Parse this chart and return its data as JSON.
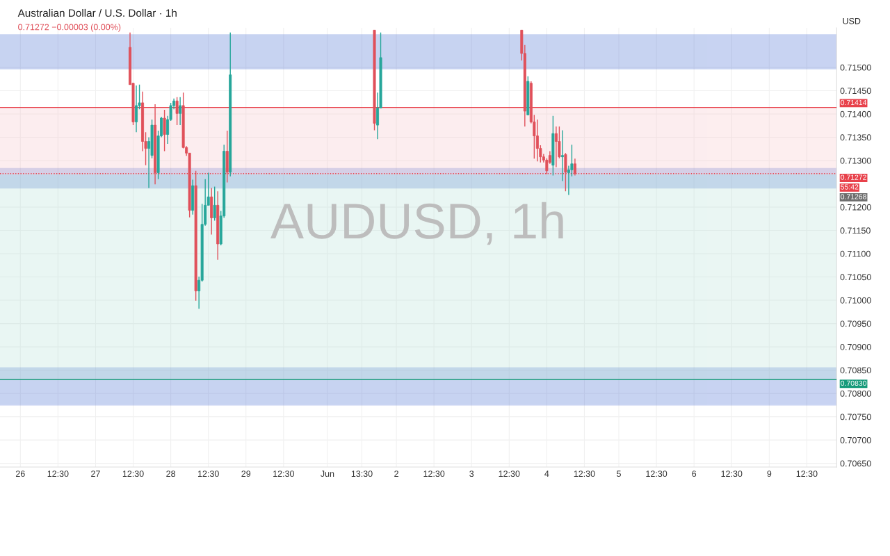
{
  "chart_data": {
    "type": "candlestick",
    "title": "Australian Dollar / U.S. Dollar · 1h",
    "subtitle": "0.71272 −0.00003 (0.00%)",
    "ylabel": "USD",
    "annotations": [
      "AUDUSD, 1h",
      "55:42",
      "0.71268"
    ],
    "categories": [
      null,
      null,
      null,
      null,
      null,
      null,
      "26",
      null,
      null,
      null,
      null,
      null,
      null,
      null,
      null,
      null,
      null,
      null,
      "12:30",
      null,
      null,
      null,
      null,
      null,
      null,
      null,
      null,
      null,
      null,
      null,
      "27",
      null,
      null,
      null,
      null,
      null,
      null,
      null,
      null,
      null,
      null,
      null,
      "12:30",
      null,
      null,
      null,
      null,
      null,
      null,
      null,
      null,
      null,
      null,
      null,
      "28",
      null,
      null,
      null,
      null,
      null,
      null,
      null,
      null,
      null,
      null,
      null,
      "12:30",
      null,
      null,
      null,
      null,
      null,
      null,
      null,
      null,
      null,
      null,
      null,
      "29",
      null,
      null,
      null,
      null,
      null,
      null,
      null,
      null,
      null,
      null,
      null,
      "12:30",
      null,
      null,
      null,
      null,
      null,
      null,
      null,
      null,
      null,
      null,
      null,
      null,
      null,
      "Jun",
      null,
      null,
      null,
      null,
      null,
      null,
      null,
      null,
      null,
      null,
      "13:30",
      null,
      null,
      null,
      null,
      null,
      null,
      null,
      null,
      null,
      null,
      "2",
      null,
      null,
      null,
      null,
      null,
      null,
      null,
      null,
      null,
      null,
      null,
      "12:30",
      null,
      null,
      null,
      null,
      null,
      null,
      null,
      null,
      null,
      null,
      null,
      "3",
      null,
      null,
      null,
      null,
      null,
      null,
      null,
      null,
      null,
      null,
      null,
      "12:30",
      null,
      null,
      null,
      null,
      null,
      null,
      null,
      null,
      null,
      null,
      null,
      "4",
      null,
      null,
      null,
      null,
      null,
      null,
      null,
      null,
      null,
      null,
      null,
      "12:30",
      null,
      null,
      null,
      null,
      null,
      null,
      null,
      null,
      null,
      null,
      "5",
      null,
      null,
      null,
      null,
      null,
      null,
      null,
      null,
      null,
      null,
      null,
      "12:30",
      null,
      null,
      null,
      null,
      null,
      null,
      null,
      null,
      null,
      null,
      null,
      "6",
      null,
      null,
      null,
      null,
      null,
      null,
      null,
      null,
      null,
      null,
      null,
      "12:30",
      null,
      null,
      null,
      null,
      null,
      null,
      null,
      null,
      null,
      null,
      null,
      "9",
      null,
      null,
      null,
      null,
      null,
      null,
      null,
      null,
      null,
      null,
      null,
      "12:30",
      null,
      null,
      null,
      null,
      null,
      null,
      null,
      null,
      null
    ],
    "ohlc": [
      null,
      null,
      null,
      null,
      null,
      null,
      null,
      null,
      null,
      null,
      null,
      null,
      null,
      null,
      null,
      null,
      null,
      null,
      null,
      null,
      null,
      null,
      null,
      null,
      null,
      null,
      null,
      null,
      null,
      null,
      null,
      null,
      null,
      null,
      null,
      null,
      null,
      null,
      null,
      null,
      null,
      [
        0.71543,
        0.71575,
        0.71463,
        0.71463
      ],
      [
        0.71466,
        0.71466,
        0.71376,
        0.71383
      ],
      [
        0.71383,
        0.71461,
        0.71361,
        0.71418
      ],
      [
        0.71418,
        0.71463,
        0.7141,
        0.71424
      ],
      [
        0.71424,
        0.71448,
        0.7132,
        0.71341
      ],
      [
        0.71341,
        0.71361,
        0.7129,
        0.71326
      ],
      [
        0.71326,
        0.7135,
        0.71241,
        0.71341
      ],
      [
        0.71311,
        0.71388,
        0.71305,
        0.71376
      ],
      [
        0.71376,
        0.71421,
        0.71249,
        0.71274
      ],
      [
        0.71274,
        0.71364,
        0.7126,
        0.71353
      ],
      [
        0.71353,
        0.71394,
        0.7135,
        0.71391
      ],
      [
        0.71391,
        0.71409,
        0.7132,
        0.71356
      ],
      [
        0.71356,
        0.71396,
        0.71336,
        0.71388
      ],
      [
        0.71388,
        0.71424,
        0.71385,
        0.71418
      ],
      [
        0.71418,
        0.71433,
        0.7141,
        0.71428
      ],
      [
        0.71428,
        0.71436,
        0.71376,
        0.71401
      ],
      [
        0.71401,
        0.71436,
        0.71376,
        0.71418
      ],
      [
        0.71418,
        0.71446,
        0.71326,
        0.71328
      ],
      [
        0.71328,
        0.71331,
        0.7131,
        0.71316
      ],
      [
        0.71316,
        0.71316,
        0.71178,
        0.71193
      ],
      [
        0.71193,
        0.71259,
        0.71184,
        0.71246
      ],
      [
        0.71246,
        0.71278,
        0.70999,
        0.7102
      ],
      [
        0.7102,
        0.71051,
        0.70982,
        0.71043
      ],
      [
        0.71043,
        0.71207,
        0.7104,
        0.71163
      ],
      [
        0.71163,
        0.7126,
        0.7116,
        0.71204
      ],
      [
        0.71204,
        0.71274,
        0.71204,
        0.71222
      ],
      [
        0.71222,
        0.71241,
        0.71141,
        0.71177
      ],
      [
        0.71177,
        0.71244,
        0.71171,
        0.71204
      ],
      [
        0.71204,
        0.71234,
        0.71087,
        0.71121
      ],
      [
        0.71121,
        0.71192,
        0.71118,
        0.71181
      ],
      [
        0.71181,
        0.71334,
        0.71177,
        0.7132
      ],
      [
        0.7132,
        0.71364,
        0.71253,
        0.71275
      ],
      [
        0.71275,
        0.71575,
        0.71266,
        0.71484
      ],
      null,
      null,
      null,
      null,
      null,
      null,
      null,
      null,
      null,
      null,
      null,
      null,
      null,
      null,
      null,
      null,
      null,
      null,
      null,
      null,
      null,
      null,
      null,
      null,
      null,
      null,
      null,
      null,
      null,
      null,
      null,
      null,
      null,
      null,
      null,
      null,
      null,
      null,
      null,
      null,
      null,
      null,
      null,
      null,
      null,
      [
        0.7158,
        0.7158,
        0.71365,
        0.7138
      ],
      [
        0.71376,
        0.71446,
        0.71346,
        0.71413
      ],
      [
        0.71413,
        0.71575,
        0.71413,
        0.71521
      ],
      null,
      null,
      null,
      null,
      null,
      null,
      null,
      null,
      null,
      null,
      null,
      null,
      null,
      null,
      null,
      null,
      null,
      null,
      null,
      null,
      null,
      null,
      null,
      null,
      null,
      null,
      null,
      null,
      null,
      null,
      null,
      null,
      null,
      null,
      null,
      null,
      null,
      null,
      null,
      null,
      null,
      null,
      null,
      null,
      [
        0.7158,
        0.7158,
        0.71515,
        0.7153
      ],
      [
        0.7153,
        0.71548,
        0.71373,
        0.71406
      ],
      [
        0.71398,
        0.71481,
        0.71398,
        0.7147
      ],
      [
        0.71466,
        0.7147,
        0.7138,
        0.71383
      ],
      [
        0.71383,
        0.71398,
        0.71304,
        0.71353
      ],
      [
        0.71353,
        0.71388,
        0.71298,
        0.71326
      ],
      [
        0.71326,
        0.71333,
        0.71296,
        0.71308
      ],
      [
        0.71308,
        0.71314,
        0.71296,
        0.71301
      ],
      [
        0.71301,
        0.71305,
        0.71271,
        0.71278
      ],
      [
        0.71311,
        0.7132,
        0.71293,
        0.71296
      ],
      [
        0.7129,
        0.71396,
        0.71268,
        0.71358
      ],
      [
        0.71358,
        0.71373,
        0.71286,
        0.71341
      ],
      [
        0.71341,
        0.71373,
        0.71305,
        0.71308
      ],
      [
        0.71308,
        0.71365,
        0.71256,
        0.71311
      ],
      [
        0.71313,
        0.71316,
        0.71234,
        0.71275
      ],
      [
        0.71274,
        0.71289,
        0.71226,
        0.7128
      ],
      [
        0.7128,
        0.71334,
        0.71266,
        0.71293
      ],
      [
        0.71293,
        0.71304,
        0.71268,
        0.71272
      ],
      null,
      null,
      null,
      null,
      null,
      null,
      null,
      null,
      null,
      null,
      null,
      null,
      null,
      null,
      null,
      null,
      null,
      null,
      null,
      null,
      null,
      null,
      null,
      null,
      null,
      null,
      null,
      null,
      null,
      null,
      null,
      null,
      null,
      null,
      null,
      null,
      null,
      null,
      null,
      null,
      null,
      null,
      null,
      null,
      null,
      null,
      null,
      null,
      null,
      null,
      null,
      null,
      null,
      null,
      null,
      null,
      null,
      null,
      null,
      null,
      null,
      null,
      null,
      null,
      null,
      null,
      null,
      null,
      null,
      null,
      null,
      null,
      null,
      null,
      null,
      null,
      null,
      null,
      null,
      null,
      null,
      null,
      null
    ],
    "ylim": [
      0.70642,
      0.71585
    ],
    "yticks": [
      {
        "value": 0.7065,
        "label": "0.70650"
      },
      {
        "value": 0.707,
        "label": "0.70700"
      },
      {
        "value": 0.7075,
        "label": "0.70750"
      },
      {
        "value": 0.708,
        "label": "0.70800"
      },
      {
        "value": 0.7085,
        "label": "0.70850"
      },
      {
        "value": 0.709,
        "label": "0.70900"
      },
      {
        "value": 0.7095,
        "label": "0.70950"
      },
      {
        "value": 0.71,
        "label": "0.71000"
      },
      {
        "value": 0.7105,
        "label": "0.71050"
      },
      {
        "value": 0.711,
        "label": "0.71100"
      },
      {
        "value": 0.7115,
        "label": "0.71150"
      },
      {
        "value": 0.712,
        "label": "0.71200"
      },
      {
        "value": 0.713,
        "label": "0.71300"
      },
      {
        "value": 0.7135,
        "label": "0.71350"
      },
      {
        "value": 0.714,
        "label": "0.71400"
      },
      {
        "value": 0.7145,
        "label": "0.71450"
      },
      {
        "value": 0.715,
        "label": "0.71500"
      }
    ],
    "bands": [
      {
        "axis": "y",
        "from": 0.71497,
        "to": 0.7157,
        "color": "#4a6fd4"
      },
      {
        "axis": "y",
        "from": 0.71241,
        "to": 0.71283,
        "color": "#4a6fd4"
      },
      {
        "axis": "y",
        "from": 0.70775,
        "to": 0.70855,
        "color": "#4a6fd4"
      },
      {
        "axis": "y",
        "from": 0.7127,
        "to": 0.71413,
        "color": "#f7c6cb"
      },
      {
        "axis": "y",
        "from": 0.70829,
        "to": 0.7127,
        "color": "#b8e2d8"
      }
    ],
    "ref_lines": [
      {
        "axis": "y",
        "value": 0.71414,
        "label": "0.71414",
        "color": "#e8414b",
        "line_style": "solid"
      },
      {
        "axis": "y",
        "value": 0.71272,
        "label": "0.71272",
        "color": "#e8414b",
        "line_style": "dotted"
      },
      {
        "axis": "y",
        "value": 0.7083,
        "label": "0.70830",
        "color": "#169a7a",
        "line_style": "solid"
      }
    ],
    "grid": true,
    "legend": false
  }
}
